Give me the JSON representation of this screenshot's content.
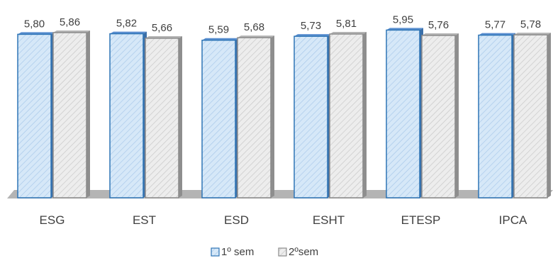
{
  "chart_data": {
    "type": "bar",
    "categories": [
      "ESG",
      "EST",
      "ESD",
      "ESHT",
      "ETESP",
      "IPCA"
    ],
    "series": [
      {
        "name": "1º sem",
        "values": [
          5.8,
          5.82,
          5.59,
          5.73,
          5.95,
          5.77
        ],
        "labels": [
          "5,80",
          "5,82",
          "5,59",
          "5,73",
          "5,95",
          "5,77"
        ],
        "color": "#cfe3f7",
        "edge": "#2e75b6"
      },
      {
        "name": "2ºsem",
        "values": [
          5.86,
          5.66,
          5.68,
          5.81,
          5.76,
          5.78
        ],
        "labels": [
          "5,86",
          "5,66",
          "5,68",
          "5,81",
          "5,76",
          "5,78"
        ],
        "color": "#e8e8e8",
        "edge": "#8c8c8c"
      }
    ],
    "ylim": [
      0,
      6.2
    ],
    "grid": false,
    "legend": "bottom",
    "style": "3d-clustered-column-hatched"
  }
}
